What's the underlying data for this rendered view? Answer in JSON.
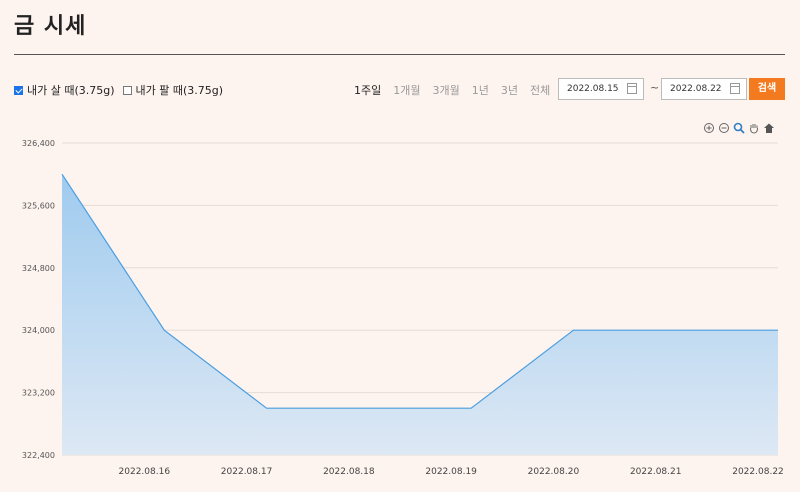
{
  "page": {
    "title": "금 시세"
  },
  "filters": {
    "buy_label": "내가 살 때(3.75g)",
    "buy_checked": true,
    "sell_label": "내가 팔 때(3.75g)",
    "sell_checked": false
  },
  "period_tabs": [
    "1주일",
    "1개월",
    "3개월",
    "1년",
    "3년",
    "전체"
  ],
  "active_period": "1주일",
  "date_range": {
    "start": "2022.08.15",
    "separator": "~",
    "end": "2022.08.22"
  },
  "search_button": "검색",
  "chart_tools": [
    "zoom-in-icon",
    "zoom-out-icon",
    "magnify-icon",
    "pan-hand-icon",
    "home-icon"
  ],
  "chart_data": {
    "type": "area",
    "x": [
      "2022.08.15",
      "2022.08.16",
      "2022.08.17",
      "2022.08.18",
      "2022.08.19",
      "2022.08.20",
      "2022.08.21",
      "2022.08.22"
    ],
    "y": [
      326000,
      324000,
      323000,
      323000,
      323000,
      324000,
      324000,
      324000
    ],
    "x_tick_labels": [
      "2022.08.16",
      "2022.08.17",
      "2022.08.18",
      "2022.08.19",
      "2022.08.20",
      "2022.08.21",
      "2022.08.22"
    ],
    "y_tick_labels": [
      "326,400",
      "325,600",
      "324,800",
      "324,000",
      "323,200",
      "322,400"
    ],
    "y_ticks": [
      326400,
      325600,
      324800,
      324000,
      323200,
      322400
    ],
    "ylim": [
      322400,
      326400
    ],
    "grid": true,
    "line_color": "#4a9ee0",
    "fill_top_color": "#9fcbef",
    "fill_bottom_color": "#dde8f4"
  }
}
